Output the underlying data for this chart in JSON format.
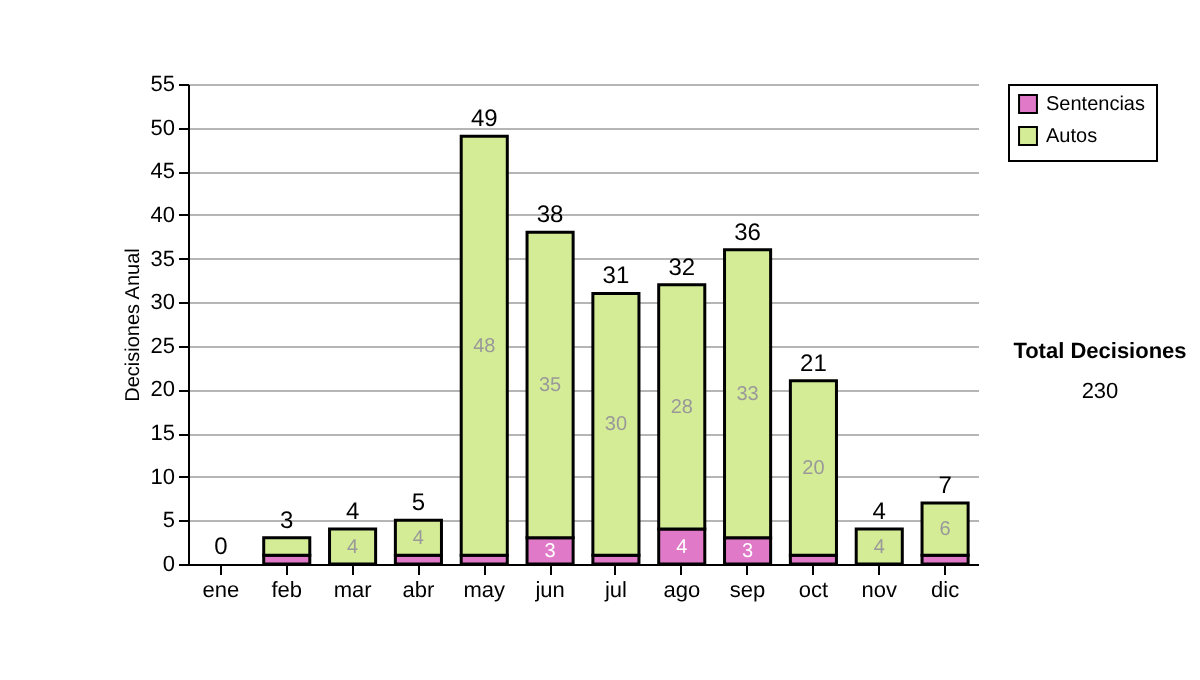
{
  "chart_data": {
    "type": "bar",
    "stacked": true,
    "ylabel": "Decisiones Anual",
    "categories": [
      "ene",
      "feb",
      "mar",
      "abr",
      "may",
      "jun",
      "jul",
      "ago",
      "sep",
      "oct",
      "nov",
      "dic"
    ],
    "series": [
      {
        "name": "Sentencias",
        "color": "#e07ac8",
        "values": [
          0,
          1,
          0,
          1,
          1,
          3,
          1,
          4,
          3,
          1,
          0,
          1
        ],
        "value_labels": [
          null,
          null,
          null,
          null,
          null,
          "3",
          null,
          "4",
          "3",
          null,
          null,
          null
        ]
      },
      {
        "name": "Autos",
        "color": "#d5ec97",
        "values": [
          0,
          2,
          4,
          4,
          48,
          35,
          30,
          28,
          33,
          20,
          4,
          6
        ],
        "value_labels": [
          null,
          null,
          "4",
          "4",
          "48",
          "35",
          "30",
          "28",
          "33",
          "20",
          "4",
          "6"
        ]
      }
    ],
    "totals": [
      "0",
      "3",
      "4",
      "5",
      "49",
      "38",
      "31",
      "32",
      "36",
      "21",
      "4",
      "7"
    ],
    "ylim": [
      0,
      55
    ],
    "yticks": [
      0,
      5,
      10,
      15,
      20,
      25,
      30,
      35,
      40,
      45,
      50,
      55
    ],
    "grid": "y",
    "legend": "right",
    "annotations": [
      "Total Decisiones",
      "230"
    ]
  }
}
